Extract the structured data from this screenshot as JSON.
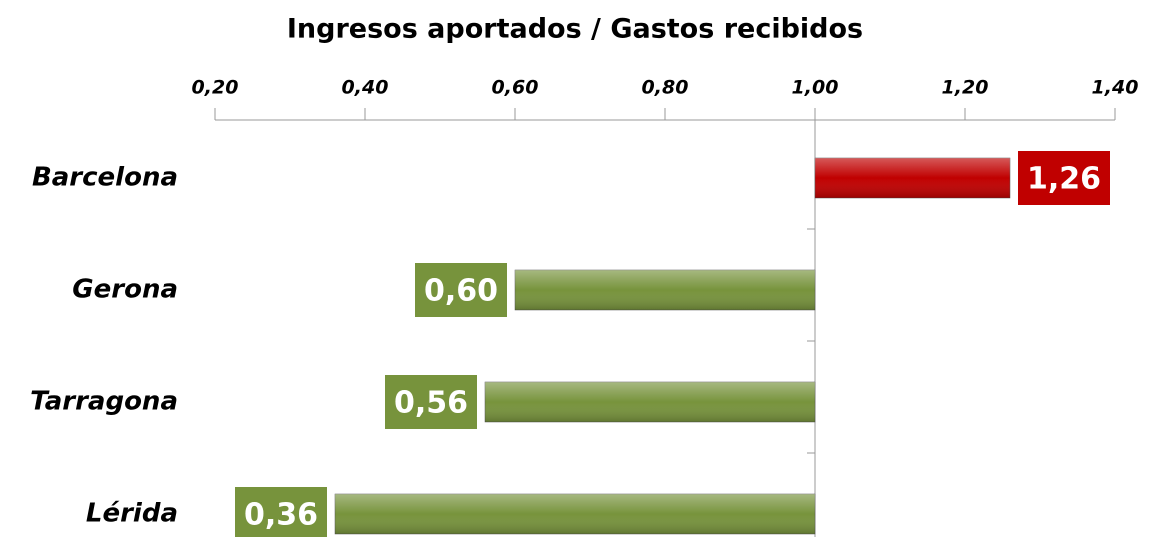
{
  "chart_data": {
    "type": "bar",
    "orientation": "horizontal",
    "title": "Ingresos aportados / Gastos recibidos",
    "categories": [
      "Barcelona",
      "Gerona",
      "Tarragona",
      "Lérida"
    ],
    "values": [
      1.26,
      0.6,
      0.56,
      0.36
    ],
    "value_labels": [
      "1,26",
      "0,60",
      "0,56",
      "0,36"
    ],
    "colors": [
      "#c00000",
      "#77933c",
      "#77933c",
      "#77933c"
    ],
    "base": 1,
    "xlim": [
      0.2,
      1.4
    ],
    "xticks": [
      {
        "value": 0.2,
        "label": "0,20"
      },
      {
        "value": 0.4,
        "label": "0,40"
      },
      {
        "value": 0.6,
        "label": "0,60"
      },
      {
        "value": 0.8,
        "label": "0,80"
      },
      {
        "value": 1,
        "label": "1,00"
      },
      {
        "value": 1.2,
        "label": "1,20"
      },
      {
        "value": 1.4,
        "label": "1,40"
      }
    ],
    "xaxis_position": "top",
    "grid": false
  }
}
